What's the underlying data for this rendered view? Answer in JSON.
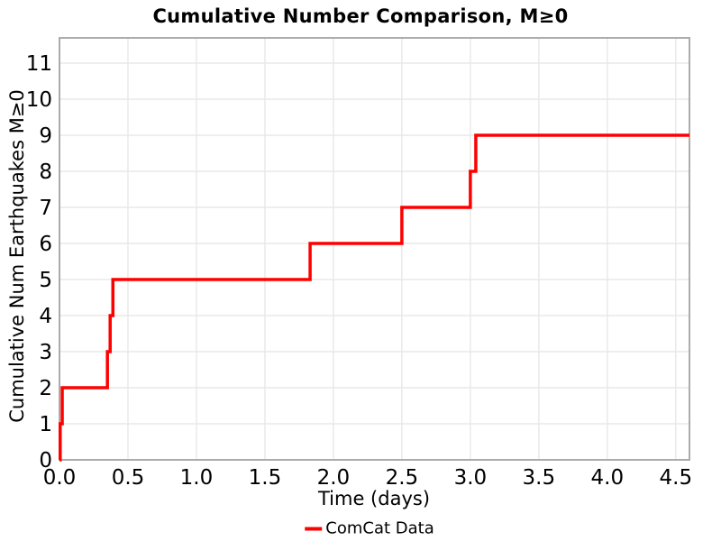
{
  "title": "Cumulative Number Comparison, M≥0",
  "colors": {
    "background": "#ffffff",
    "accent": "#ff0000",
    "grid": "#e8e8e8",
    "spine": "#a3a3a3",
    "text": "#000000"
  },
  "chart_data": {
    "type": "line",
    "style": "step-post",
    "title": "Cumulative Number Comparison, M≥0",
    "xlabel": "Time (days)",
    "ylabel": "Cumulative Num Earthquakes M≥0",
    "xlim": [
      0,
      4.6
    ],
    "ylim": [
      0,
      11.7
    ],
    "xtick_labels": [
      "0.0",
      "0.5",
      "1.0",
      "1.5",
      "2.0",
      "2.5",
      "3.0",
      "3.5",
      "4.0",
      "4.5"
    ],
    "xtick_values": [
      0,
      0.5,
      1.0,
      1.5,
      2.0,
      2.5,
      3.0,
      3.5,
      4.0,
      4.5
    ],
    "ytick_values": [
      0,
      1,
      2,
      3,
      4,
      5,
      6,
      7,
      8,
      9,
      10,
      11
    ],
    "grid": true,
    "line_width": 3.5,
    "legend": {
      "position": "bottom-center",
      "entries": [
        {
          "label": "ComCat Data",
          "color": "#ff0000"
        }
      ]
    },
    "series": [
      {
        "name": "ComCat Data",
        "color": "#ff0000",
        "points": [
          [
            0.0,
            0
          ],
          [
            0.005,
            1
          ],
          [
            0.02,
            2
          ],
          [
            0.35,
            3
          ],
          [
            0.37,
            4
          ],
          [
            0.39,
            5
          ],
          [
            1.83,
            6
          ],
          [
            2.5,
            7
          ],
          [
            3.0,
            8
          ],
          [
            3.04,
            9
          ]
        ],
        "extend_to_x": 4.6
      }
    ]
  }
}
